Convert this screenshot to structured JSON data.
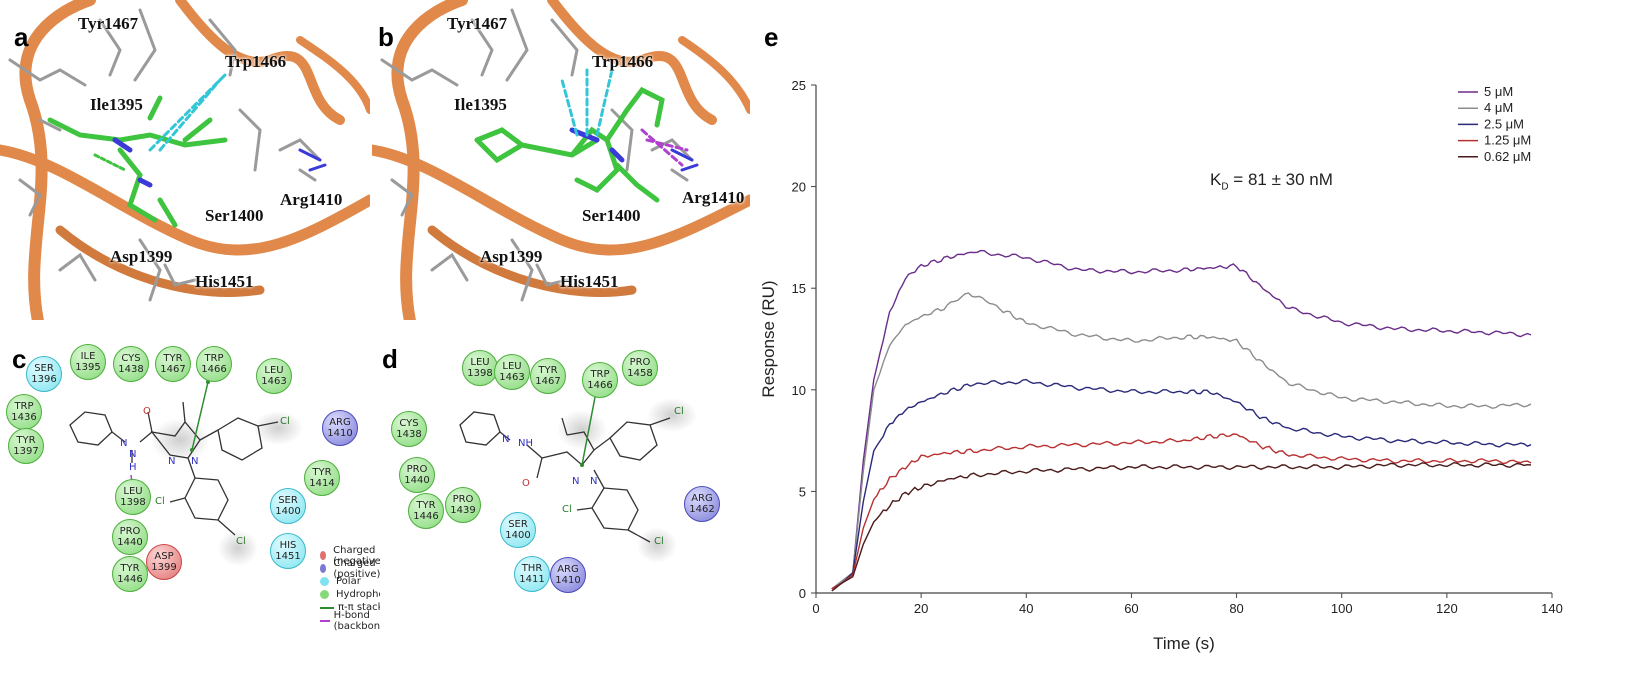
{
  "panels": {
    "a": {
      "letter": "a"
    },
    "b": {
      "letter": "b"
    },
    "c": {
      "letter": "c"
    },
    "d": {
      "letter": "d"
    },
    "e": {
      "letter": "e"
    }
  },
  "panel_a": {
    "labels": [
      "Tyr1467",
      "Trp1466",
      "Ile1395",
      "Arg1410",
      "Ser1400",
      "Asp1399",
      "His1451"
    ]
  },
  "panel_b": {
    "labels": [
      "Tyr1467",
      "Trp1466",
      "Ile1395",
      "Arg1410",
      "Ser1400",
      "Asp1399",
      "His1451"
    ]
  },
  "panel_c": {
    "residues": [
      {
        "name": "SER",
        "num": "1396",
        "kind": "pol"
      },
      {
        "name": "ILE",
        "num": "1395",
        "kind": "hyd"
      },
      {
        "name": "CYS",
        "num": "1438",
        "kind": "hyd"
      },
      {
        "name": "TYR",
        "num": "1467",
        "kind": "hyd"
      },
      {
        "name": "TRP",
        "num": "1466",
        "kind": "hyd"
      },
      {
        "name": "LEU",
        "num": "1463",
        "kind": "hyd"
      },
      {
        "name": "TRP",
        "num": "1436",
        "kind": "hyd"
      },
      {
        "name": "TYR",
        "num": "1397",
        "kind": "hyd"
      },
      {
        "name": "ARG",
        "num": "1410",
        "kind": "pos"
      },
      {
        "name": "TYR",
        "num": "1414",
        "kind": "hyd"
      },
      {
        "name": "LEU",
        "num": "1398",
        "kind": "hyd"
      },
      {
        "name": "SER",
        "num": "1400",
        "kind": "pol"
      },
      {
        "name": "PRO",
        "num": "1440",
        "kind": "hyd"
      },
      {
        "name": "HIS",
        "num": "1451",
        "kind": "pol"
      },
      {
        "name": "ASP",
        "num": "1399",
        "kind": "neg"
      },
      {
        "name": "TYR",
        "num": "1446",
        "kind": "hyd"
      }
    ],
    "atoms": {
      "o": "O",
      "nh": "N",
      "n2": "N",
      "h": "H",
      "n3": "N",
      "n4": "N",
      "cl1": "Cl",
      "cl2": "Cl",
      "cl3": "Cl"
    },
    "legend": [
      {
        "label": "Charged (negative)",
        "color": "#e07070"
      },
      {
        "label": "Charged (positive)",
        "color": "#7b7bd6"
      },
      {
        "label": "Polar",
        "color": "#7fe3ef"
      },
      {
        "label": "Hydrophobic",
        "color": "#86d97a"
      },
      {
        "label": "π-π stacking",
        "color": "#2e8b2e"
      },
      {
        "label": "H-bond (backbone)",
        "color": "#b040d0"
      }
    ]
  },
  "panel_d": {
    "residues": [
      {
        "name": "LEU",
        "num": "1398",
        "kind": "hyd"
      },
      {
        "name": "LEU",
        "num": "1463",
        "kind": "hyd"
      },
      {
        "name": "TYR",
        "num": "1467",
        "kind": "hyd"
      },
      {
        "name": "TRP",
        "num": "1466",
        "kind": "hyd"
      },
      {
        "name": "PRO",
        "num": "1458",
        "kind": "hyd"
      },
      {
        "name": "CYS",
        "num": "1438",
        "kind": "hyd"
      },
      {
        "name": "PRO",
        "num": "1440",
        "kind": "hyd"
      },
      {
        "name": "PRO",
        "num": "1439",
        "kind": "hyd"
      },
      {
        "name": "TYR",
        "num": "1446",
        "kind": "hyd"
      },
      {
        "name": "SER",
        "num": "1400",
        "kind": "pol"
      },
      {
        "name": "ARG",
        "num": "1462",
        "kind": "pos"
      },
      {
        "name": "THR",
        "num": "1411",
        "kind": "pol"
      },
      {
        "name": "ARG",
        "num": "1410",
        "kind": "pos"
      }
    ],
    "atoms": {
      "n": "N",
      "nh": "NH",
      "o": "O",
      "n3": "N",
      "n4": "N",
      "cl1": "Cl",
      "cl2": "Cl",
      "cl3": "Cl"
    }
  },
  "chart_data": {
    "type": "line",
    "title": "",
    "annotation": "K_D = 81 ± 30 nM",
    "annotation_main": "K",
    "annotation_sub": "D",
    "annotation_rest": " = 81 ± 30 nM",
    "xlabel": "Time (s)",
    "ylabel": "Response (RU)",
    "xlim": [
      0,
      140
    ],
    "ylim": [
      0,
      25
    ],
    "xticks": [
      0,
      20,
      40,
      60,
      80,
      100,
      120,
      140
    ],
    "yticks": [
      0,
      5,
      10,
      15,
      20,
      25
    ],
    "legend_position": "top-right",
    "grid": false,
    "series": [
      {
        "name": "5 μM",
        "color": "#6a2d8a",
        "x": [
          3,
          5,
          7,
          9,
          11,
          14,
          17,
          20,
          25,
          30,
          40,
          50,
          60,
          70,
          75,
          80,
          85,
          90,
          100,
          110,
          120,
          130,
          136
        ],
        "y": [
          0.2,
          0.6,
          1.0,
          6.5,
          10.5,
          13.8,
          15.5,
          16.1,
          16.5,
          16.8,
          16.5,
          15.9,
          15.8,
          15.9,
          16.0,
          16.1,
          15.0,
          14.0,
          13.3,
          13.0,
          12.9,
          12.8,
          12.7
        ]
      },
      {
        "name": "4 μM",
        "color": "#8c8c8c",
        "x": [
          3,
          5,
          7,
          9,
          11,
          14,
          17,
          20,
          25,
          29,
          35,
          40,
          50,
          60,
          70,
          75,
          80,
          85,
          90,
          100,
          110,
          120,
          130,
          136
        ],
        "y": [
          0.2,
          0.6,
          1.0,
          6.0,
          10.0,
          12.2,
          13.2,
          13.6,
          14.1,
          14.8,
          14.0,
          13.3,
          12.7,
          12.4,
          12.6,
          12.6,
          12.4,
          11.3,
          10.3,
          9.6,
          9.4,
          9.2,
          9.2,
          9.3
        ]
      },
      {
        "name": "2.5 μM",
        "color": "#2a2a7a",
        "x": [
          3,
          5,
          7,
          9,
          11,
          14,
          17,
          20,
          25,
          30,
          40,
          50,
          60,
          70,
          75,
          80,
          85,
          90,
          100,
          110,
          120,
          130,
          136
        ],
        "y": [
          0.2,
          0.5,
          1.0,
          4.5,
          7.0,
          8.3,
          9.0,
          9.4,
          9.9,
          10.3,
          10.4,
          10.1,
          9.9,
          9.9,
          9.9,
          9.4,
          8.6,
          8.1,
          7.7,
          7.5,
          7.4,
          7.3,
          7.3
        ]
      },
      {
        "name": "1.25 μM",
        "color": "#b83030",
        "x": [
          3,
          5,
          7,
          9,
          11,
          14,
          17,
          20,
          25,
          30,
          40,
          50,
          60,
          70,
          75,
          80,
          85,
          90,
          100,
          110,
          120,
          130,
          136
        ],
        "y": [
          0.2,
          0.5,
          0.9,
          3.2,
          4.6,
          5.6,
          6.2,
          6.7,
          6.9,
          7.0,
          7.2,
          7.3,
          7.4,
          7.5,
          7.7,
          7.8,
          7.2,
          6.8,
          6.6,
          6.5,
          6.5,
          6.5,
          6.4
        ]
      },
      {
        "name": "0.62 μM",
        "color": "#4a1a1a",
        "x": [
          3,
          5,
          7,
          9,
          11,
          14,
          17,
          20,
          25,
          30,
          40,
          50,
          60,
          70,
          80,
          90,
          100,
          110,
          120,
          130,
          136
        ],
        "y": [
          0.1,
          0.5,
          0.8,
          2.4,
          3.5,
          4.3,
          4.9,
          5.2,
          5.6,
          5.8,
          6.0,
          6.1,
          6.2,
          6.2,
          6.2,
          6.2,
          6.2,
          6.3,
          6.3,
          6.3,
          6.3
        ]
      }
    ]
  }
}
